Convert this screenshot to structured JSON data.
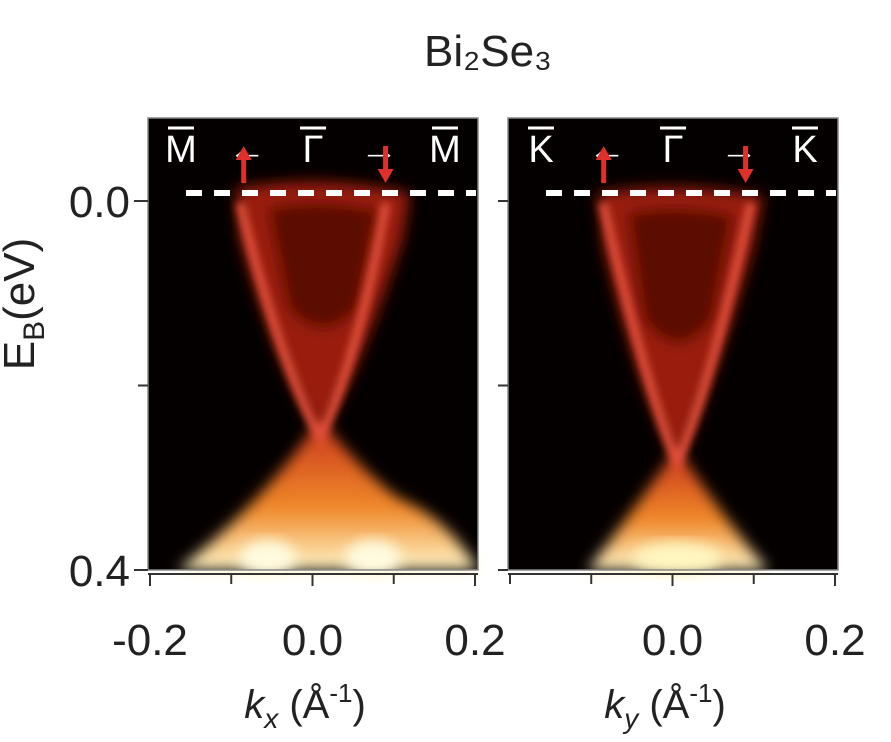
{
  "chart_data": [
    {
      "type": "arpes-map",
      "title": "Bi₂Se₃",
      "ylabel": {
        "symbol": "E",
        "sub": "B",
        "unit": "(eV)"
      },
      "xlabel": {
        "symbol": "k",
        "sub": "x",
        "unit_open": " (Å",
        "unit_sup": "-1",
        "unit_close": ")"
      },
      "xlim": [
        -0.2,
        0.2
      ],
      "xticks": [
        -0.2,
        {
          "value": 0,
          "label": "0.0"
        },
        0.2
      ],
      "xticks_minor": [
        -0.1,
        0.1
      ],
      "ylim": [
        0.4,
        -0.09
      ],
      "yticks": [
        {
          "value": 0,
          "label": "0.0"
        },
        0.4
      ],
      "yticks_minor": [
        0.2
      ],
      "annotations": [
        "M",
        "←",
        "Γ",
        "→",
        "M"
      ]
    },
    {
      "type": "arpes-map",
      "xlabel": {
        "symbol": "k",
        "sub": "y",
        "unit_open": " (Å",
        "unit_sup": "-1",
        "unit_close": ")"
      },
      "xlim": [
        -0.2,
        0.2
      ],
      "xticks": [
        {
          "value": 0,
          "label": "0.0"
        },
        0.2
      ],
      "xticks_minor": [
        -0.2,
        -0.1,
        0.1
      ],
      "ylim": [
        0.4,
        -0.09
      ],
      "yticks_minor": [
        0,
        0.2,
        0.4
      ],
      "annotations": [
        "K",
        "←",
        "Γ",
        "→",
        "K"
      ]
    }
  ]
}
